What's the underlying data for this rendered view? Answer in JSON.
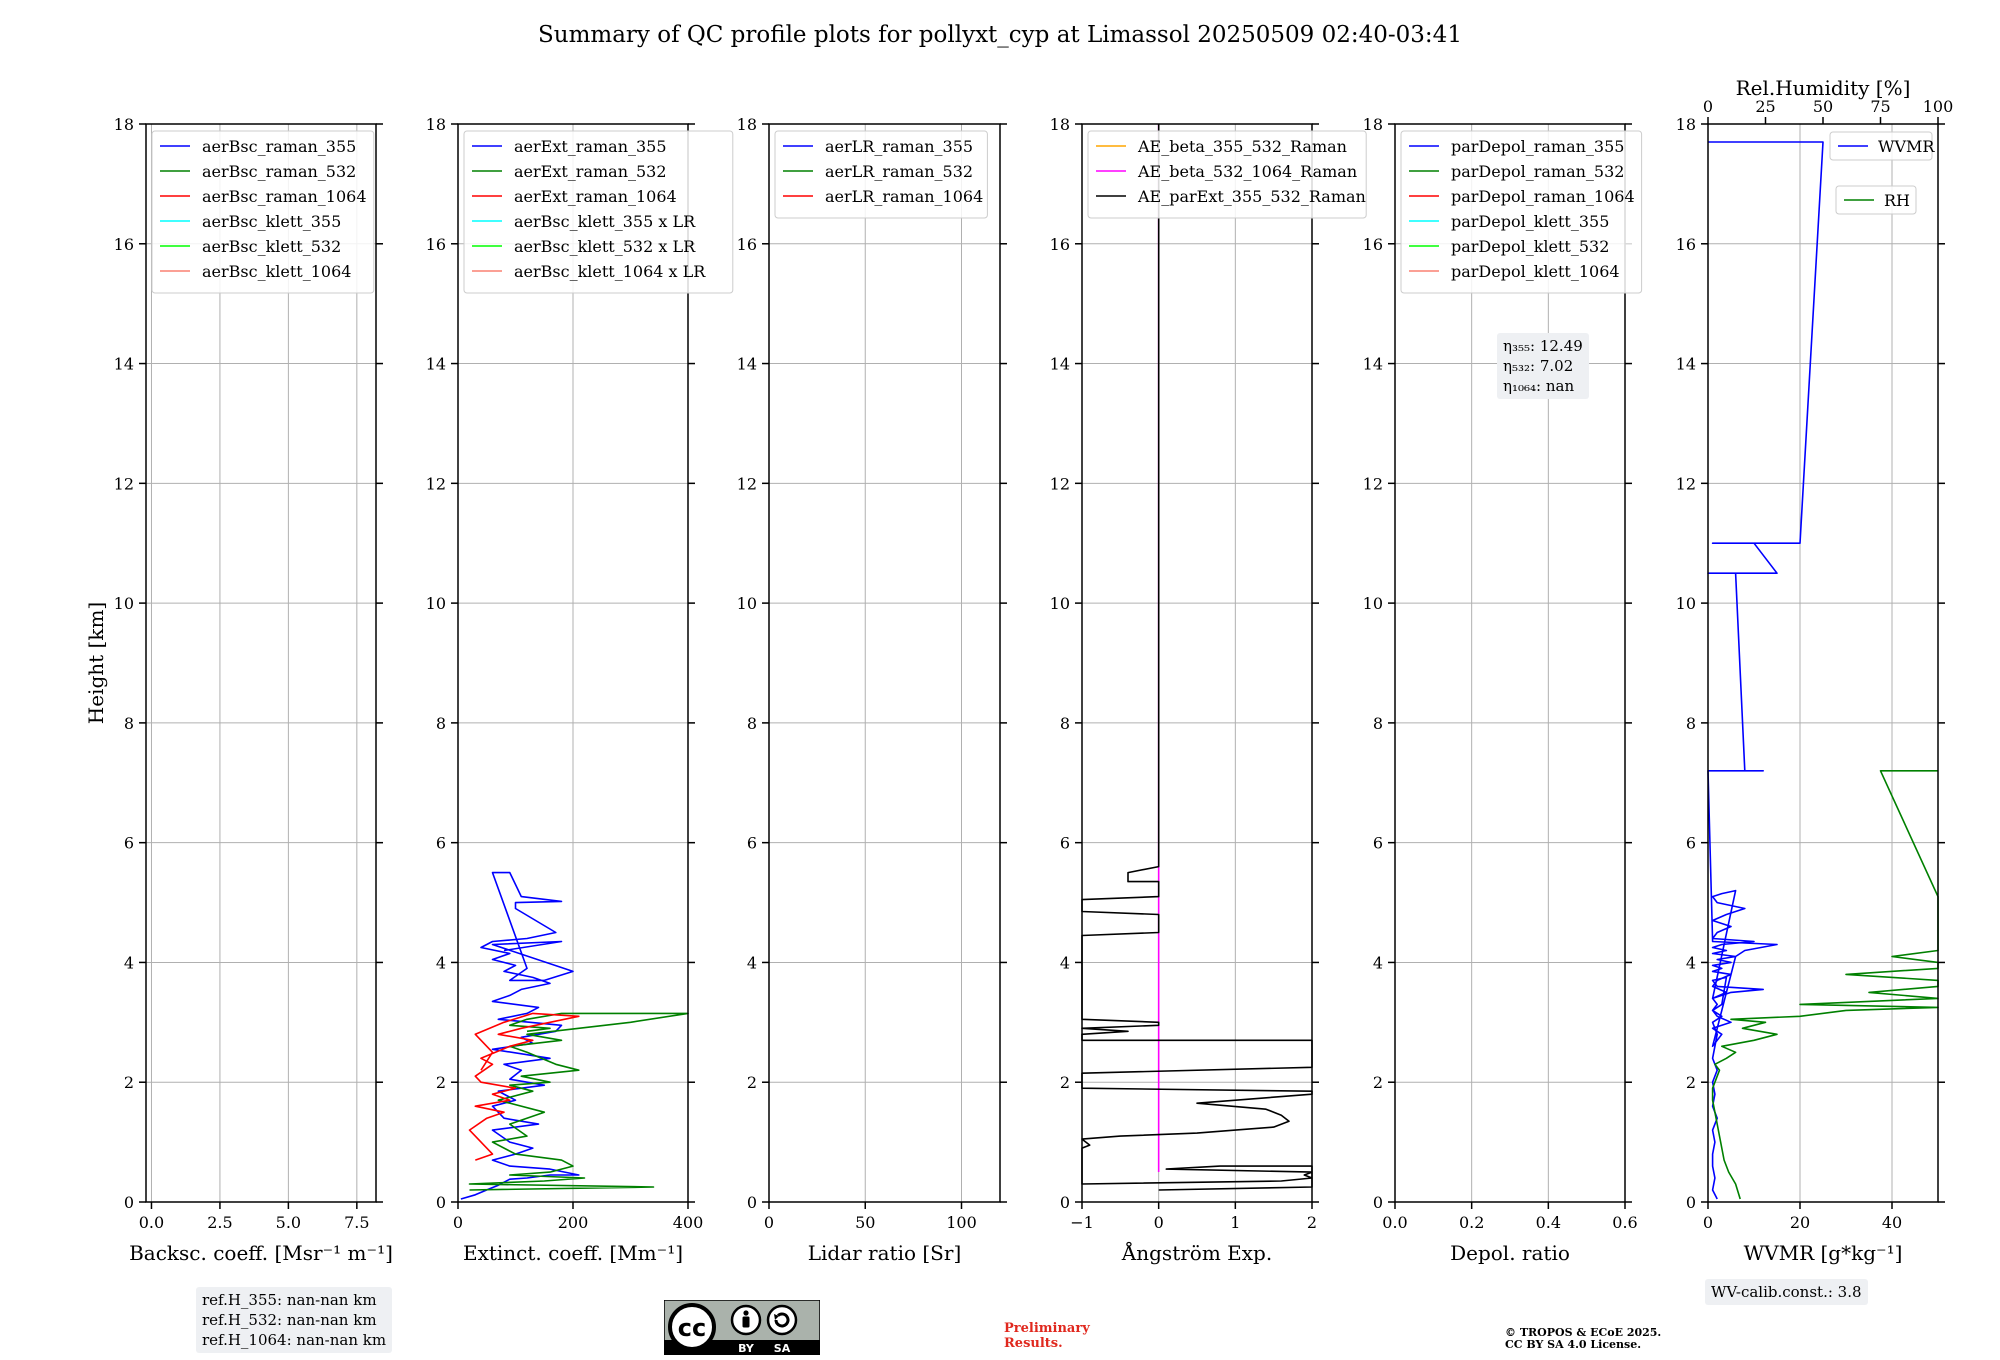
{
  "title": "Summary of QC profile plots for pollyxt_cyp at Limassol 20250509 02:40-03:41",
  "ylabel": "Height [km]",
  "colors": {
    "blue": "#0000ff",
    "green": "#008000",
    "red": "#ff0000",
    "cyan": "#00ffff",
    "lime": "#00ff00",
    "salmon": "#fa8072",
    "orange": "#ffa500",
    "magenta": "#ff00ff",
    "black": "#000000"
  },
  "chart_data": [
    {
      "type": "line",
      "xlabel": "Backsc. coeff. [Msr⁻¹ m⁻¹]",
      "xlim": [
        -0.2,
        8.2
      ],
      "ylim": [
        0,
        18
      ],
      "xticks": [
        "0.0",
        "2.5",
        "5.0",
        "7.5"
      ],
      "xtick_values": [
        0,
        2.5,
        5.0,
        7.5
      ],
      "yticks": [
        "0",
        "2",
        "4",
        "6",
        "8",
        "10",
        "12",
        "14",
        "16",
        "18"
      ],
      "grid": true,
      "legend_position": "top-left",
      "legend": [
        {
          "name": "aerBsc_raman_355",
          "color": "#0000ff"
        },
        {
          "name": "aerBsc_raman_532",
          "color": "#008000"
        },
        {
          "name": "aerBsc_raman_1064",
          "color": "#ff0000"
        },
        {
          "name": "aerBsc_klett_355",
          "color": "#00ffff"
        },
        {
          "name": "aerBsc_klett_532",
          "color": "#00ff00"
        },
        {
          "name": "aerBsc_klett_1064",
          "color": "#fa8072"
        }
      ],
      "series": [],
      "info_box": [
        "ref.H_355: nan-nan km",
        "ref.H_532: nan-nan km",
        "ref.H_1064: nan-nan km"
      ]
    },
    {
      "type": "line",
      "xlabel": "Extinct. coeff. [Mm⁻¹]",
      "xlim": [
        0,
        400
      ],
      "ylim": [
        0,
        18
      ],
      "xticks": [
        "0",
        "200",
        "400"
      ],
      "xtick_values": [
        0,
        200,
        400
      ],
      "yticks": [
        "0",
        "2",
        "4",
        "6",
        "8",
        "10",
        "12",
        "14",
        "16",
        "18"
      ],
      "grid": true,
      "legend_position": "top-left",
      "legend": [
        {
          "name": "aerExt_raman_355",
          "color": "#0000ff"
        },
        {
          "name": "aerExt_raman_532",
          "color": "#008000"
        },
        {
          "name": "aerExt_raman_1064",
          "color": "#ff0000"
        },
        {
          "name": "aerBsc_klett_355 x LR",
          "color": "#00ffff"
        },
        {
          "name": "aerBsc_klett_532 x LR",
          "color": "#00ff00"
        },
        {
          "name": "aerBsc_klett_1064 x LR",
          "color": "#fa8072"
        }
      ],
      "series": [
        {
          "color": "#0000ff",
          "x": [
            5,
            30,
            55,
            70,
            90,
            120,
            160,
            210,
            160,
            90,
            60,
            100,
            130,
            90,
            60,
            140,
            80,
            60,
            100,
            70,
            150,
            90,
            110,
            80,
            160,
            60,
            130,
            110,
            170,
            180,
            70,
            120,
            140,
            60,
            90,
            110,
            160,
            130,
            80,
            100,
            60,
            90,
            40,
            60,
            120,
            170,
            100,
            100,
            180,
            110,
            90,
            60,
            120,
            90,
            150,
            200,
            60,
            180,
            80
          ],
          "y": [
            0.05,
            0.12,
            0.22,
            0.28,
            0.38,
            0.4,
            0.45,
            0.45,
            0.55,
            0.6,
            0.7,
            0.8,
            0.9,
            1.0,
            1.2,
            1.3,
            1.4,
            1.6,
            1.7,
            1.85,
            1.95,
            2.05,
            2.2,
            2.3,
            2.4,
            2.55,
            2.65,
            2.75,
            2.85,
            2.95,
            3.05,
            3.15,
            3.25,
            3.35,
            3.45,
            3.55,
            3.65,
            3.75,
            3.85,
            3.95,
            4.05,
            4.15,
            4.25,
            4.35,
            4.4,
            4.5,
            4.9,
            5.0,
            5.02,
            5.1,
            5.5,
            5.5,
            3.9,
            3.7,
            3.7,
            3.85,
            4.3,
            4.35,
            4.2
          ]
        },
        {
          "color": "#008000",
          "x": [
            20,
            340,
            20,
            150,
            220,
            90,
            160,
            200,
            180,
            100,
            60,
            120,
            90,
            150,
            70,
            130,
            90,
            160,
            110,
            210,
            170,
            120,
            90,
            180,
            120,
            300,
            400,
            180,
            120,
            90,
            160,
            120
          ],
          "y": [
            0.2,
            0.25,
            0.3,
            0.35,
            0.4,
            0.45,
            0.5,
            0.6,
            0.7,
            0.8,
            1.0,
            1.1,
            1.3,
            1.5,
            1.7,
            1.85,
            1.95,
            2.0,
            2.1,
            2.2,
            2.3,
            2.5,
            2.6,
            2.7,
            2.8,
            3.0,
            3.15,
            3.15,
            3.05,
            2.95,
            2.9,
            2.85
          ]
        },
        {
          "color": "#ff0000",
          "x": [
            30,
            60,
            40,
            20,
            50,
            80,
            30,
            90,
            60,
            100,
            40,
            30,
            60,
            40,
            90,
            130,
            70,
            110,
            160,
            210,
            130,
            80,
            30,
            60,
            40
          ],
          "y": [
            0.7,
            0.8,
            1.0,
            1.2,
            1.4,
            1.5,
            1.6,
            1.7,
            1.8,
            1.9,
            2.0,
            2.1,
            2.3,
            2.4,
            2.6,
            2.7,
            2.8,
            2.9,
            3.0,
            3.1,
            3.15,
            3.0,
            2.8,
            2.5,
            2.2
          ]
        }
      ]
    },
    {
      "type": "line",
      "xlabel": "Lidar ratio [Sr]",
      "xlim": [
        0,
        120
      ],
      "ylim": [
        0,
        18
      ],
      "xticks": [
        "0",
        "50",
        "100"
      ],
      "xtick_values": [
        0,
        50,
        100
      ],
      "yticks": [
        "0",
        "2",
        "4",
        "6",
        "8",
        "10",
        "12",
        "14",
        "16",
        "18"
      ],
      "grid": true,
      "legend_position": "top-left",
      "legend": [
        {
          "name": "aerLR_raman_355",
          "color": "#0000ff"
        },
        {
          "name": "aerLR_raman_532",
          "color": "#008000"
        },
        {
          "name": "aerLR_raman_1064",
          "color": "#ff0000"
        }
      ],
      "series": []
    },
    {
      "type": "line",
      "xlabel": "Ångström Exp.",
      "xlim": [
        -1,
        2
      ],
      "ylim": [
        0,
        18
      ],
      "xticks": [
        "−1",
        "0",
        "1",
        "2"
      ],
      "xtick_values": [
        -1,
        0,
        1,
        2
      ],
      "yticks": [
        "0",
        "2",
        "4",
        "6",
        "8",
        "10",
        "12",
        "14",
        "16",
        "18"
      ],
      "grid": true,
      "legend_position": "top-left",
      "legend": [
        {
          "name": "AE_beta_355_532_Raman",
          "color": "#ffa500"
        },
        {
          "name": "AE_beta_532_1064_Raman",
          "color": "#ff00ff"
        },
        {
          "name": "AE_parExt_355_532_Raman",
          "color": "#000000"
        }
      ],
      "series": [
        {
          "color": "#ff00ff",
          "x": [
            0,
            0
          ],
          "y": [
            0.5,
            18
          ]
        },
        {
          "color": "#000000",
          "x": [
            0,
            0,
            -0.4,
            -0.4,
            0,
            0,
            -1,
            -1,
            0,
            0,
            -1,
            -1,
            0,
            0,
            -1,
            -0.4,
            -1,
            -1,
            2,
            2,
            -1,
            -1,
            2,
            2,
            0.5,
            1.4,
            1.6,
            1.7,
            1.5,
            1.0,
            0.5,
            -0.5,
            -1,
            -0.9,
            -1,
            -1,
            1.6,
            2,
            1.9,
            2,
            0.1,
            0.8,
            2,
            2,
            0
          ],
          "y": [
            18,
            5.6,
            5.5,
            5.35,
            5.35,
            5.1,
            5.05,
            4.85,
            4.8,
            4.5,
            4.45,
            3.05,
            3.0,
            2.95,
            2.9,
            2.85,
            2.8,
            2.7,
            2.7,
            2.25,
            2.15,
            1.9,
            1.85,
            1.8,
            1.65,
            1.55,
            1.45,
            1.35,
            1.25,
            1.2,
            1.15,
            1.1,
            1.05,
            0.95,
            0.9,
            0.3,
            0.35,
            0.4,
            0.45,
            0.5,
            0.55,
            0.6,
            0.6,
            0.25,
            0.2
          ]
        }
      ]
    },
    {
      "type": "line",
      "xlabel": "Depol. ratio",
      "xlim": [
        0,
        0.6
      ],
      "ylim": [
        0,
        18
      ],
      "xticks": [
        "0.0",
        "0.2",
        "0.4",
        "0.6"
      ],
      "xtick_values": [
        0,
        0.2,
        0.4,
        0.6
      ],
      "yticks": [
        "0",
        "2",
        "4",
        "6",
        "8",
        "10",
        "12",
        "14",
        "16",
        "18"
      ],
      "grid": true,
      "legend_position": "top-left",
      "legend": [
        {
          "name": "parDepol_raman_355",
          "color": "#0000ff"
        },
        {
          "name": "parDepol_raman_532",
          "color": "#008000"
        },
        {
          "name": "parDepol_raman_1064",
          "color": "#ff0000"
        },
        {
          "name": "parDepol_klett_355",
          "color": "#00ffff"
        },
        {
          "name": "parDepol_klett_532",
          "color": "#00ff00"
        },
        {
          "name": "parDepol_klett_1064",
          "color": "#fa8072"
        }
      ],
      "series": [],
      "info_box": [
        "η₃₅₅: 12.49",
        "η₅₃₂: 7.02",
        "η₁₀₆₄: nan"
      ]
    },
    {
      "type": "line",
      "xlabel": "WVMR [g*kg⁻¹]",
      "x2label": "Rel.Humidity [%]",
      "xlim": [
        0,
        50
      ],
      "x2lim": [
        0,
        100
      ],
      "ylim": [
        0,
        18
      ],
      "xticks": [
        "0",
        "20",
        "40"
      ],
      "xtick_values": [
        0,
        20,
        40
      ],
      "x2ticks": [
        "0",
        "25",
        "50",
        "75",
        "100"
      ],
      "x2tick_values": [
        0,
        25,
        50,
        75,
        100
      ],
      "yticks": [
        "0",
        "2",
        "4",
        "6",
        "8",
        "10",
        "12",
        "14",
        "16",
        "18"
      ],
      "grid": true,
      "legend": [
        {
          "name": "WVMR",
          "color": "#0000ff",
          "position": "top-right"
        },
        {
          "name": "RH",
          "color": "#008000",
          "position": "right"
        }
      ],
      "series": [
        {
          "name": "WVMR",
          "color": "#0000ff",
          "x": [
            2,
            1,
            1.5,
            1,
            1,
            1.5,
            1,
            2,
            1,
            1.5,
            1,
            2,
            1,
            1.5,
            2,
            1,
            3,
            1,
            2,
            1,
            4,
            1,
            2,
            5,
            1,
            3,
            1,
            5,
            2,
            6,
            1,
            4,
            1,
            3,
            10,
            1,
            2,
            5,
            1,
            4,
            8,
            2,
            1,
            3,
            6,
            1,
            5,
            12,
            2,
            1,
            4,
            3,
            1,
            2,
            5,
            1,
            3,
            2,
            1,
            6,
            8,
            15,
            1,
            0,
            12,
            8,
            6,
            0,
            15,
            10,
            1,
            20,
            25,
            0,
            0,
            0,
            0
          ],
          "y": [
            0.05,
            0.2,
            0.4,
            0.6,
            0.8,
            1.0,
            1.2,
            1.4,
            1.6,
            1.8,
            2.0,
            2.2,
            2.4,
            2.6,
            2.8,
            3.0,
            3.1,
            3.2,
            3.3,
            3.4,
            3.5,
            3.6,
            3.7,
            3.8,
            3.85,
            3.9,
            3.95,
            4.0,
            4.05,
            4.1,
            4.15,
            4.2,
            4.25,
            4.3,
            4.35,
            4.4,
            4.5,
            4.6,
            4.7,
            4.8,
            4.9,
            5.0,
            5.1,
            5.15,
            5.2,
            3.4,
            3.5,
            3.55,
            3.6,
            3.7,
            3.75,
            3.3,
            3.2,
            3.1,
            3.0,
            2.9,
            2.8,
            2.7,
            2.6,
            4.1,
            4.2,
            4.3,
            4.35,
            7.2,
            7.2,
            7.2,
            10.5,
            10.5,
            10.5,
            11.0,
            11.0,
            11.0,
            17.7,
            17.7,
            17.7,
            17.7,
            17.7
          ]
        },
        {
          "name": "RH",
          "color": "#008000",
          "x": [
            14,
            12,
            9,
            7,
            6,
            5,
            4,
            3,
            2,
            2,
            3,
            4,
            5,
            3,
            8,
            12,
            6,
            20,
            30,
            15,
            25,
            10,
            40,
            60,
            100,
            40,
            100,
            70,
            100,
            100,
            60,
            100,
            100,
            80,
            100,
            100,
            100,
            100,
            100,
            100,
            100,
            100,
            100,
            75,
            100
          ],
          "y": [
            0.05,
            0.3,
            0.5,
            0.7,
            0.9,
            1.1,
            1.3,
            1.5,
            1.7,
            1.9,
            2.0,
            2.1,
            2.2,
            2.3,
            2.4,
            2.5,
            2.6,
            2.7,
            2.8,
            2.9,
            3.0,
            3.05,
            3.1,
            3.2,
            3.25,
            3.3,
            3.4,
            3.5,
            3.6,
            3.7,
            3.8,
            3.9,
            4.0,
            4.1,
            4.2,
            4.3,
            4.4,
            4.5,
            4.55,
            4.6,
            4.7,
            4.8,
            5.1,
            7.2,
            7.2
          ]
        }
      ],
      "info_box": [
        "WV-calib.const.: 3.8"
      ]
    }
  ],
  "footer": {
    "preliminary": [
      "Preliminary",
      "Results."
    ],
    "copyright": [
      "© TROPOS & ECoE 2025.",
      "CC BY SA 4.0 License."
    ],
    "cc_badge": {
      "top_text": "cc",
      "labels": [
        "BY",
        "SA"
      ]
    }
  }
}
